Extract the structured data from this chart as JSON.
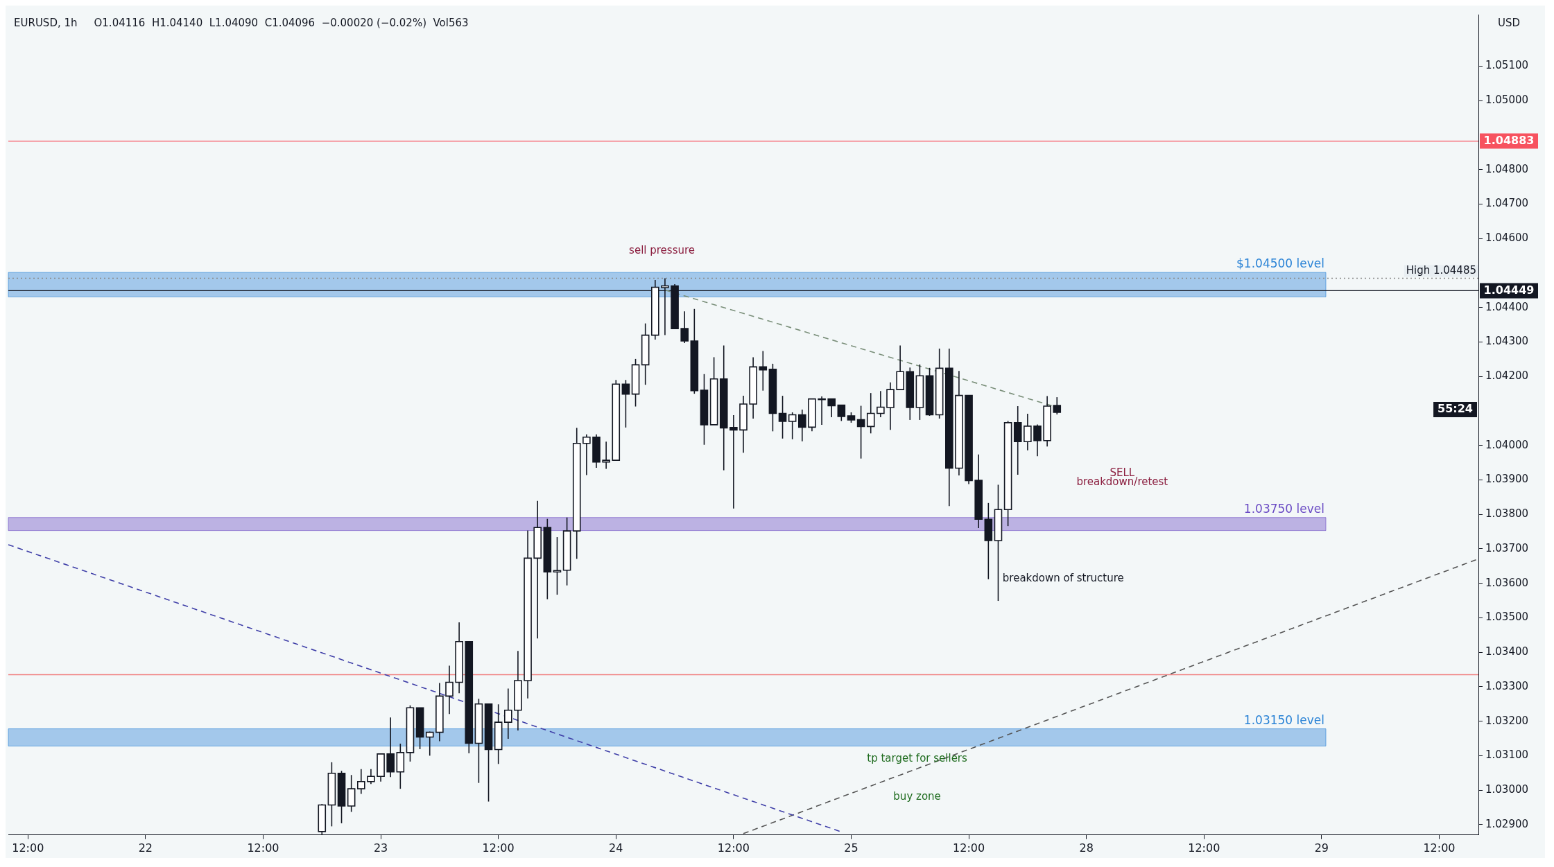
{
  "chart_data": {
    "type": "candlestick",
    "title": "EURUSD, 1h",
    "subtitle": "O1.04116  H1.04140  L1.04090  C1.04096  −0.00020 (−0.02%)  Vol563",
    "ylabel": "USD",
    "color": "#131722",
    "legend": false,
    "grid": false,
    "categories": [
      null,
      null,
      "12:00",
      null,
      null,
      null,
      null,
      null,
      null,
      null,
      null,
      null,
      null,
      null,
      "22",
      null,
      null,
      null,
      null,
      null,
      null,
      null,
      null,
      null,
      null,
      null,
      "12:00",
      null,
      null,
      null,
      null,
      null,
      null,
      null,
      null,
      null,
      null,
      null,
      "23",
      null,
      null,
      null,
      null,
      null,
      null,
      null,
      null,
      null,
      null,
      null,
      "12:00",
      null,
      null,
      null,
      null,
      null,
      null,
      null,
      null,
      null,
      null,
      null,
      "24",
      null,
      null,
      null,
      null,
      null,
      null,
      null,
      null,
      null,
      null,
      null,
      "12:00",
      null,
      null,
      null,
      null,
      null,
      null,
      null,
      null,
      null,
      null,
      null,
      "25",
      null,
      null,
      null,
      null,
      null,
      null,
      null,
      null,
      null,
      null,
      null,
      "12:00",
      null,
      null,
      null,
      null,
      null,
      null,
      null,
      null,
      null,
      null,
      null,
      "28",
      null,
      null,
      null,
      null,
      null,
      null,
      null,
      null,
      null,
      null,
      null,
      "12:00",
      null,
      null,
      null,
      null,
      null,
      null,
      null,
      null,
      null,
      null,
      null,
      "29",
      null,
      null,
      null,
      null,
      null,
      null,
      null,
      null,
      null,
      null,
      null,
      "12:00",
      null,
      null,
      null,
      null
    ],
    "ohlc": [
      null,
      null,
      null,
      null,
      null,
      null,
      null,
      null,
      null,
      null,
      null,
      null,
      null,
      null,
      null,
      null,
      null,
      null,
      null,
      null,
      null,
      null,
      null,
      null,
      null,
      null,
      null,
      null,
      null,
      null,
      null,
      null,
      [
        1.0288,
        1.0296,
        1.0287,
        1.02957
      ],
      [
        1.02957,
        1.03081,
        1.02895,
        1.03049
      ],
      [
        1.03049,
        1.03056,
        1.02904,
        1.02954
      ],
      [
        1.02954,
        1.03044,
        1.02937,
        1.03004
      ],
      [
        1.03004,
        1.03061,
        1.02989,
        1.03025
      ],
      [
        1.03025,
        1.03061,
        1.03018,
        1.0304
      ],
      [
        1.0304,
        1.03107,
        1.03025,
        1.03105
      ],
      [
        1.03105,
        1.03211,
        1.03038,
        1.03053
      ],
      [
        1.03053,
        1.03135,
        1.03004,
        1.03109
      ],
      [
        1.03109,
        1.03246,
        1.03083,
        1.03239
      ],
      [
        1.03239,
        1.03239,
        1.03119,
        1.03154
      ],
      [
        1.03154,
        1.0317,
        1.031,
        1.03168
      ],
      [
        1.03168,
        1.03311,
        1.03142,
        1.03273
      ],
      [
        1.03273,
        1.03361,
        1.03221,
        1.03313
      ],
      [
        1.03313,
        1.03487,
        1.03281,
        1.03431
      ],
      [
        1.03431,
        1.03431,
        1.03107,
        1.03136
      ],
      [
        1.03136,
        1.03265,
        1.03021,
        1.0325
      ],
      [
        1.0325,
        1.0325,
        1.02967,
        1.03118
      ],
      [
        1.03118,
        1.03249,
        1.03076,
        1.03197
      ],
      [
        1.03197,
        1.03295,
        1.03149,
        1.03232
      ],
      [
        1.03232,
        1.03404,
        1.03173,
        1.03318
      ],
      [
        1.03318,
        1.03753,
        1.03266,
        1.03673
      ],
      [
        1.03673,
        1.03839,
        1.0344,
        1.03762
      ],
      [
        1.03762,
        1.03787,
        1.03554,
        1.03633
      ],
      [
        1.03633,
        1.03734,
        1.03567,
        1.03637
      ],
      [
        1.03638,
        1.03791,
        1.03594,
        1.03752
      ],
      [
        1.03752,
        1.04051,
        1.03671,
        1.04006
      ],
      [
        1.04006,
        1.04032,
        1.03914,
        1.04024
      ],
      [
        1.04024,
        1.04032,
        1.03935,
        1.03952
      ],
      [
        1.03952,
        1.04011,
        1.03932,
        1.03957
      ],
      [
        1.03957,
        1.0419,
        1.03957,
        1.04178
      ],
      [
        1.04178,
        1.0419,
        1.04052,
        1.04149
      ],
      [
        1.04149,
        1.04251,
        1.04113,
        1.04234
      ],
      [
        1.04234,
        1.04354,
        1.04176,
        1.0432
      ],
      [
        1.0432,
        1.0448,
        1.04307,
        1.04459
      ],
      [
        1.04458,
        1.04485,
        1.0432,
        1.04463
      ],
      [
        1.04463,
        1.04468,
        1.04337,
        1.04339
      ],
      [
        1.04339,
        1.04389,
        1.04297,
        1.04303
      ],
      [
        1.04303,
        1.04396,
        1.0415,
        1.04159
      ],
      [
        1.0416,
        1.04207,
        1.04002,
        1.0406
      ],
      [
        1.0406,
        1.04256,
        1.0406,
        1.04193
      ],
      [
        1.04193,
        1.0429,
        1.03928,
        1.04051
      ],
      [
        1.04052,
        1.04088,
        1.03817,
        1.04045
      ],
      [
        1.04045,
        1.04144,
        1.03979,
        1.0412
      ],
      [
        1.0412,
        1.04256,
        1.04078,
        1.04228
      ],
      [
        1.04228,
        1.04274,
        1.04159,
        1.04219
      ],
      [
        1.04221,
        1.04237,
        1.04041,
        1.04093
      ],
      [
        1.04093,
        1.04144,
        1.0402,
        1.0407
      ],
      [
        1.0407,
        1.04096,
        1.04018,
        1.04089
      ],
      [
        1.04089,
        1.04104,
        1.04012,
        1.04053
      ],
      [
        1.04053,
        1.04135,
        1.04041,
        1.04135
      ],
      [
        1.04135,
        1.04142,
        1.0406,
        1.04135
      ],
      [
        1.04135,
        1.04135,
        1.04082,
        1.04115
      ],
      [
        1.04117,
        1.04117,
        1.04071,
        1.04084
      ],
      [
        1.04086,
        1.04096,
        1.04066,
        1.04074
      ],
      [
        1.04075,
        1.04115,
        1.03962,
        1.04055
      ],
      [
        1.04055,
        1.04152,
        1.04035,
        1.04093
      ],
      [
        1.04093,
        1.04158,
        1.04082,
        1.04111
      ],
      [
        1.0411,
        1.04183,
        1.04045,
        1.04162
      ],
      [
        1.04162,
        1.0429,
        1.04162,
        1.04214
      ],
      [
        1.04214,
        1.04226,
        1.04074,
        1.0411
      ],
      [
        1.0411,
        1.04235,
        1.04074,
        1.04202
      ],
      [
        1.04202,
        1.04225,
        1.04086,
        1.04089
      ],
      [
        1.04089,
        1.04281,
        1.04078,
        1.04224
      ],
      [
        1.04224,
        1.04281,
        1.03824,
        1.03934
      ],
      [
        1.03934,
        1.04216,
        1.03913,
        1.04145
      ],
      [
        1.04145,
        1.04145,
        1.03888,
        1.03898
      ],
      [
        1.03899,
        1.03974,
        1.0376,
        1.03786
      ],
      [
        1.03786,
        1.03833,
        1.03612,
        1.03724
      ],
      [
        1.03724,
        1.03886,
        1.03549,
        1.03814
      ],
      [
        1.03814,
        1.04071,
        1.03766,
        1.04066
      ],
      [
        1.04066,
        1.04114,
        1.03915,
        1.04011
      ],
      [
        1.04011,
        1.04092,
        1.03986,
        1.04056
      ],
      [
        1.04056,
        1.04061,
        1.03969,
        1.04014
      ],
      [
        1.04014,
        1.04143,
        1.03997,
        1.04114
      ],
      [
        1.04116,
        1.0414,
        1.0409,
        1.04096
      ],
      null,
      null,
      null,
      null,
      null,
      null,
      null,
      null,
      null,
      null,
      null,
      null,
      null,
      null,
      null,
      null,
      null,
      null,
      null,
      null,
      null,
      null,
      null,
      null,
      null,
      null,
      null,
      null,
      null,
      null,
      null,
      null,
      null,
      null,
      null,
      null,
      null,
      null,
      null,
      null,
      null,
      null,
      null
    ],
    "series": [
      {
        "type": "line",
        "color": "#3f3fa8",
        "line_style": "dashed",
        "values": [
          1.03712,
          null,
          null,
          null,
          null,
          null,
          null,
          null,
          null,
          null,
          null,
          null,
          null,
          null,
          null,
          null,
          null,
          null,
          null,
          null,
          null,
          null,
          null,
          null,
          null,
          null,
          null,
          null,
          null,
          null,
          null,
          null,
          null,
          null,
          null,
          null,
          null,
          null,
          null,
          null,
          null,
          null,
          null,
          null,
          null,
          null,
          null,
          null,
          null,
          null,
          null,
          null,
          null,
          null,
          null,
          null,
          null,
          null,
          null,
          null,
          null,
          null,
          null,
          null,
          null,
          null,
          null,
          null,
          null,
          null,
          null,
          null,
          null,
          null,
          null,
          null,
          null,
          null,
          null,
          null,
          null,
          null,
          null,
          null,
          null,
          1.02879,
          null,
          null,
          null,
          null,
          null,
          null,
          null,
          null,
          null,
          null,
          null,
          null,
          null,
          null,
          null,
          null,
          null,
          null,
          null,
          null,
          null,
          null,
          null,
          null,
          null,
          null,
          null,
          null,
          null,
          null,
          null,
          null,
          null,
          null,
          null,
          null,
          null,
          null,
          null,
          null,
          null,
          null,
          null,
          null,
          null,
          null,
          null,
          null,
          null,
          null,
          null,
          null,
          null,
          null,
          null,
          null,
          null,
          null,
          null,
          null,
          null,
          null,
          null,
          null,
          null
        ]
      },
      {
        "type": "line",
        "color": "#555555",
        "line_style": "dashed",
        "values": [
          null,
          null,
          null,
          null,
          null,
          null,
          null,
          null,
          null,
          null,
          null,
          null,
          null,
          null,
          null,
          null,
          null,
          null,
          null,
          null,
          null,
          null,
          null,
          null,
          null,
          null,
          null,
          null,
          null,
          null,
          null,
          null,
          null,
          null,
          null,
          null,
          null,
          null,
          null,
          null,
          null,
          null,
          null,
          null,
          null,
          null,
          null,
          null,
          null,
          null,
          null,
          null,
          null,
          null,
          null,
          null,
          null,
          null,
          null,
          null,
          null,
          null,
          null,
          null,
          null,
          null,
          null,
          null,
          null,
          null,
          null,
          null,
          null,
          null,
          null,
          1.02874,
          null,
          null,
          null,
          null,
          null,
          null,
          null,
          null,
          null,
          null,
          null,
          null,
          null,
          null,
          null,
          null,
          null,
          null,
          null,
          null,
          null,
          null,
          null,
          null,
          null,
          null,
          null,
          null,
          null,
          null,
          null,
          null,
          null,
          null,
          null,
          null,
          null,
          null,
          null,
          null,
          null,
          null,
          null,
          null,
          null,
          null,
          null,
          null,
          null,
          null,
          null,
          null,
          null,
          null,
          null,
          null,
          null,
          null,
          null,
          null,
          null,
          null,
          null,
          null,
          null,
          null,
          null,
          null,
          null,
          null,
          null,
          null,
          null,
          null,
          1.03671
        ]
      },
      {
        "type": "line",
        "color": "#7a8f7a",
        "line_style": "dashed",
        "values": [
          null,
          null,
          null,
          null,
          null,
          null,
          null,
          null,
          null,
          null,
          null,
          null,
          null,
          null,
          null,
          null,
          null,
          null,
          null,
          null,
          null,
          null,
          null,
          null,
          null,
          null,
          null,
          null,
          null,
          null,
          null,
          null,
          null,
          null,
          null,
          null,
          null,
          null,
          null,
          null,
          null,
          null,
          null,
          null,
          null,
          null,
          null,
          null,
          null,
          null,
          null,
          null,
          null,
          null,
          null,
          null,
          null,
          null,
          null,
          null,
          null,
          null,
          null,
          null,
          null,
          null,
          null,
          1.04451,
          null,
          null,
          null,
          null,
          null,
          null,
          null,
          null,
          null,
          null,
          null,
          null,
          null,
          null,
          null,
          null,
          null,
          null,
          null,
          null,
          null,
          null,
          null,
          null,
          null,
          null,
          null,
          null,
          null,
          null,
          null,
          null,
          null,
          null,
          null,
          null,
          null,
          null,
          null,
          1.04111,
          null,
          null,
          null,
          null,
          null,
          null,
          null,
          null,
          null,
          null,
          null,
          null,
          null,
          null,
          null,
          null,
          null,
          null,
          null,
          null,
          null,
          null,
          null,
          null,
          null,
          null,
          null,
          null,
          null,
          null,
          null,
          null,
          null,
          null,
          null,
          null,
          null,
          null,
          null,
          null,
          null,
          null,
          null
        ]
      }
    ],
    "ylim": [
      1.0287,
      1.0525
    ],
    "yticks": [
      {
        "value": 1.029,
        "label": "1.02900"
      },
      {
        "value": 1.03,
        "label": "1.03000"
      },
      {
        "value": 1.031,
        "label": "1.03100"
      },
      {
        "value": 1.032,
        "label": "1.03200"
      },
      {
        "value": 1.033,
        "label": "1.03300"
      },
      {
        "value": 1.034,
        "label": "1.03400"
      },
      {
        "value": 1.035,
        "label": "1.03500"
      },
      {
        "value": 1.036,
        "label": "1.03600"
      },
      {
        "value": 1.037,
        "label": "1.03700"
      },
      {
        "value": 1.038,
        "label": "1.03800"
      },
      {
        "value": 1.039,
        "label": "1.03900"
      },
      {
        "value": 1.04,
        "label": "1.04000"
      },
      {
        "value": 1.042,
        "label": "1.04200"
      },
      {
        "value": 1.043,
        "label": "1.04300"
      },
      {
        "value": 1.044,
        "label": "1.04400"
      },
      {
        "value": 1.046,
        "label": "1.04600"
      },
      {
        "value": 1.047,
        "label": "1.04700"
      },
      {
        "value": 1.048,
        "label": "1.04800"
      },
      {
        "value": 1.05,
        "label": "1.05000"
      },
      {
        "value": 1.051,
        "label": "1.05100"
      }
    ],
    "bands": [
      {
        "axis": "y",
        "from": 1.04431,
        "to": 1.04502,
        "label": "$1.04500 level",
        "color": "#2a83d6"
      },
      {
        "axis": "y",
        "from": 1.03753,
        "to": 1.03791,
        "label": "1.03750 level",
        "color": "#6a4bc4"
      },
      {
        "axis": "y",
        "from": 1.03128,
        "to": 1.03178,
        "label": "1.03150 level",
        "color": "#2a83d6"
      }
    ],
    "ref_lines": [
      {
        "axis": "y",
        "value": 1.04883,
        "label": "1.04883",
        "color": "#f7525f",
        "line_style": "solid"
      },
      {
        "axis": "y",
        "value": 1.04449,
        "label": "1.04449",
        "color": "#131722",
        "line_style": "solid"
      },
      {
        "axis": "y",
        "value": 1.04485,
        "label": "High 1.04485",
        "color": "#888888",
        "line_style": "dotted"
      },
      {
        "axis": "y",
        "value": 1.03335,
        "label": null,
        "color": "#f08080",
        "line_style": "solid"
      }
    ],
    "annotations": [
      "sell pressure",
      "SELL",
      "breakdown/retest",
      "breakdown of structure",
      "tp target for sellers",
      "buy zone",
      "55:24"
    ]
  }
}
